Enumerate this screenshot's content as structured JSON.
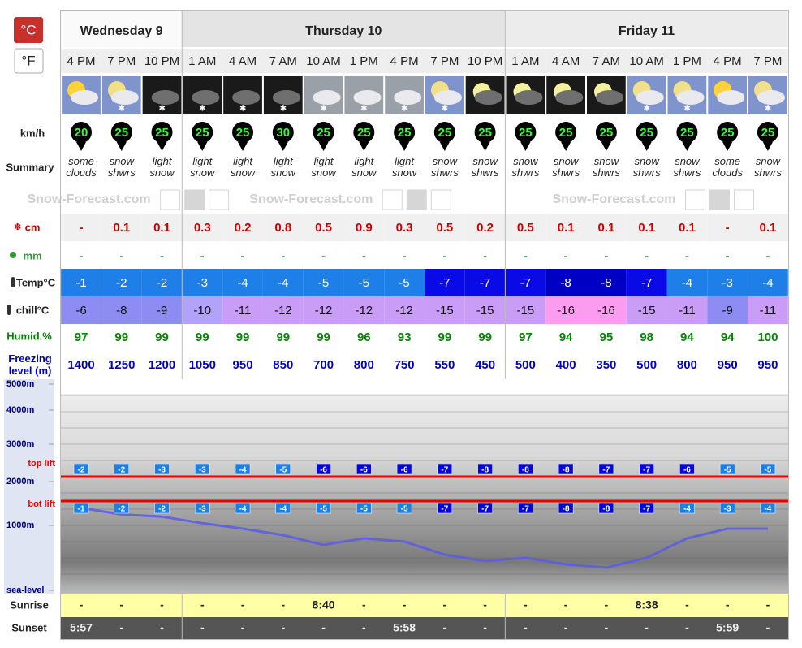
{
  "units": [
    "°C",
    "°F"
  ],
  "days": [
    {
      "name": "Wednesday 9",
      "times": [
        "4 PM",
        "7 PM",
        "10 PM"
      ]
    },
    {
      "name": "Thursday 10",
      "times": [
        "1 AM",
        "4 AM",
        "7 AM",
        "10 AM",
        "1 PM",
        "4 PM",
        "7 PM",
        "10 PM"
      ]
    },
    {
      "name": "Friday 11",
      "times": [
        "1 AM",
        "4 AM",
        "7 AM",
        "10 AM",
        "1 PM",
        "4 PM",
        "7 PM"
      ]
    }
  ],
  "rows": {
    "wind": {
      "label": "km/h",
      "values": [
        20,
        25,
        25,
        25,
        25,
        30,
        25,
        25,
        25,
        25,
        25,
        25,
        25,
        25,
        25,
        25,
        25,
        25
      ]
    },
    "summary": {
      "label": "Summary",
      "values": [
        "some clouds",
        "snow shwrs",
        "light snow",
        "light snow",
        "light snow",
        "light snow",
        "light snow",
        "light snow",
        "light snow",
        "snow shwrs",
        "snow shwrs",
        "snow shwrs",
        "snow shwrs",
        "snow shwrs",
        "snow shwrs",
        "snow shwrs",
        "some clouds",
        "snow shwrs"
      ]
    },
    "snow": {
      "label": "cm",
      "values": [
        "-",
        0.1,
        0.1,
        0.3,
        0.2,
        0.8,
        0.5,
        0.9,
        0.3,
        0.5,
        0.2,
        0.5,
        0.1,
        0.1,
        0.1,
        0.1,
        "-",
        0.1
      ]
    },
    "rain": {
      "label": "mm",
      "values": [
        "-",
        "-",
        "-",
        "-",
        "-",
        "-",
        "-",
        "-",
        "-",
        "-",
        "-",
        "-",
        "-",
        "-",
        "-",
        "-",
        "-",
        "-"
      ]
    },
    "temp": {
      "label": "Temp°C",
      "values": [
        -1,
        -2,
        -2,
        -3,
        -4,
        -4,
        -5,
        -5,
        -5,
        -7,
        -7,
        -7,
        -8,
        -8,
        -7,
        -4,
        -3,
        -4
      ]
    },
    "chill": {
      "label": "chill°C",
      "values": [
        -6,
        -8,
        -9,
        -10,
        -11,
        -12,
        -12,
        -12,
        -12,
        -15,
        -15,
        -15,
        -16,
        -16,
        -15,
        -11,
        -9,
        -11
      ]
    },
    "humid": {
      "label": "Humid.%",
      "values": [
        97,
        99,
        99,
        99,
        99,
        99,
        99,
        96,
        93,
        99,
        99,
        97,
        94,
        95,
        98,
        94,
        94,
        100
      ]
    },
    "freezing": {
      "label": "Freezing level (m)",
      "values": [
        1400,
        1250,
        1200,
        1050,
        950,
        850,
        700,
        800,
        750,
        550,
        450,
        500,
        400,
        350,
        500,
        800,
        950,
        950
      ]
    }
  },
  "watermark": "Snow-Forecast.com",
  "altitude_chart": {
    "yticks": [
      {
        "value": 5000,
        "label": "5000m"
      },
      {
        "value": 4000,
        "label": "4000m"
      },
      {
        "value": 3000,
        "label": "3000m"
      },
      {
        "value": 2000,
        "label": "2000m"
      },
      {
        "value": 1000,
        "label": "1000m"
      },
      {
        "value": 0,
        "label": "sea-level"
      }
    ],
    "top_lift": {
      "label": "top lift",
      "values": [
        -2,
        -2,
        -3,
        -3,
        -4,
        -5,
        -6,
        -6,
        -6,
        -7,
        -8,
        -8,
        -8,
        -7,
        -7,
        -6,
        -5,
        -5
      ]
    },
    "bot_lift": {
      "label": "bot lift",
      "values": [
        -1,
        -2,
        -2,
        -3,
        -4,
        -4,
        -5,
        -5,
        -5,
        -7,
        -7,
        -7,
        -8,
        -8,
        -7,
        -4,
        -3,
        -4
      ]
    }
  },
  "sunrise": {
    "label": "Sunrise",
    "values": [
      "-",
      "-",
      "-",
      "-",
      "-",
      "-",
      "8:40",
      "-",
      "-",
      "-",
      "-",
      "-",
      "-",
      "-",
      "8:38",
      "-",
      "-",
      "-"
    ]
  },
  "sunset": {
    "label": "Sunset",
    "values": [
      "5:57",
      "-",
      "-",
      "-",
      "-",
      "-",
      "-",
      "-",
      "5:58",
      "-",
      "-",
      "-",
      "-",
      "-",
      "-",
      "-",
      "5:59",
      "-"
    ]
  }
}
